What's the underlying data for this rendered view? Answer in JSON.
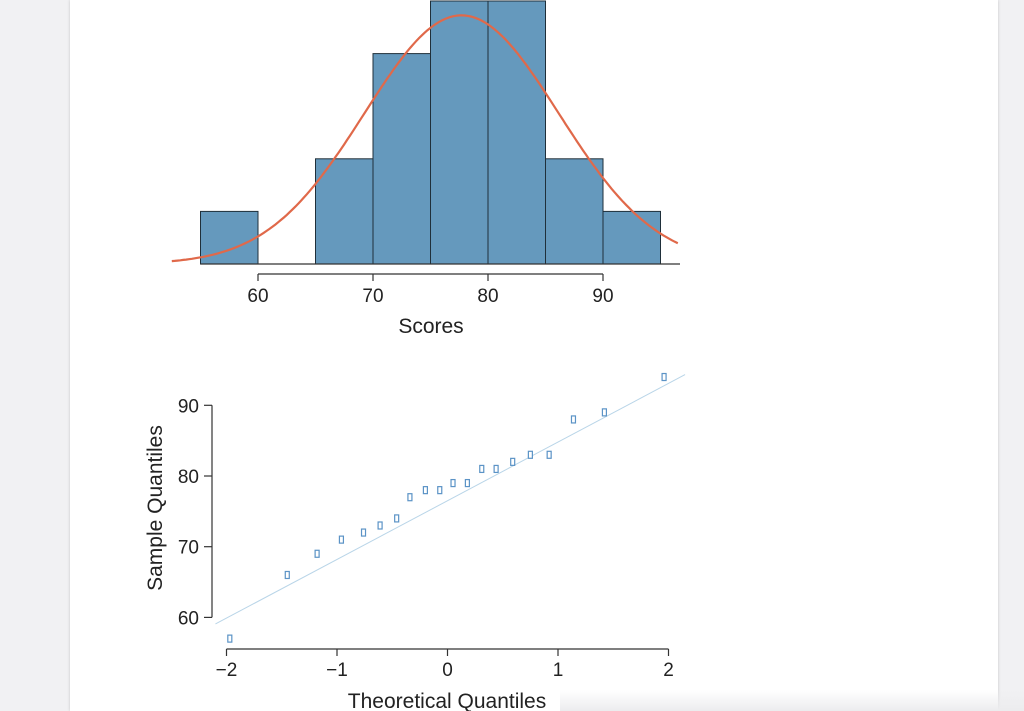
{
  "colors": {
    "bar_fill": "#6599bd",
    "bar_stroke": "#1f2f3a",
    "curve": "#e0694a",
    "qq_point": "#5b93c6",
    "qq_line": "#b9d5e8",
    "axis": "#333333"
  },
  "chart_data": [
    {
      "type": "bar",
      "subtype": "histogram",
      "bins": [
        [
          55,
          60
        ],
        [
          60,
          65
        ],
        [
          65,
          70
        ],
        [
          70,
          75
        ],
        [
          75,
          80
        ],
        [
          80,
          85
        ],
        [
          85,
          90
        ],
        [
          90,
          95
        ]
      ],
      "counts": [
        1,
        0,
        2,
        4,
        5,
        5,
        2,
        1
      ],
      "xlabel": "Scores",
      "xticks": [
        60,
        70,
        80,
        90
      ],
      "xlim": [
        52.5,
        96.5
      ],
      "ylim": [
        0,
        5
      ],
      "overlay": {
        "type": "normal_curve",
        "mean": 77.7,
        "sd": 8.44,
        "scaled_to_count": true
      }
    },
    {
      "type": "scatter",
      "subtype": "qq-plot",
      "xlabel": "Theoretical Quantiles",
      "ylabel": "Sample Quantiles",
      "xticks": [
        -2,
        -1,
        0,
        1,
        2
      ],
      "yticks": [
        60,
        70,
        80,
        90
      ],
      "xlim": [
        -2.1,
        2.1
      ],
      "ylim": [
        56,
        96
      ],
      "points": [
        [
          -1.97,
          57
        ],
        [
          -1.45,
          66
        ],
        [
          -1.18,
          69
        ],
        [
          -0.96,
          71
        ],
        [
          -0.76,
          72
        ],
        [
          -0.61,
          73
        ],
        [
          -0.46,
          74
        ],
        [
          -0.34,
          77
        ],
        [
          -0.2,
          78
        ],
        [
          -0.07,
          78
        ],
        [
          0.05,
          79
        ],
        [
          0.18,
          79
        ],
        [
          0.31,
          81
        ],
        [
          0.44,
          81
        ],
        [
          0.59,
          82
        ],
        [
          0.75,
          83
        ],
        [
          0.92,
          83
        ],
        [
          1.14,
          88
        ],
        [
          1.42,
          89
        ],
        [
          1.96,
          94
        ]
      ],
      "reference_line": {
        "slope": 8.3,
        "intercept": 76.5
      }
    }
  ]
}
